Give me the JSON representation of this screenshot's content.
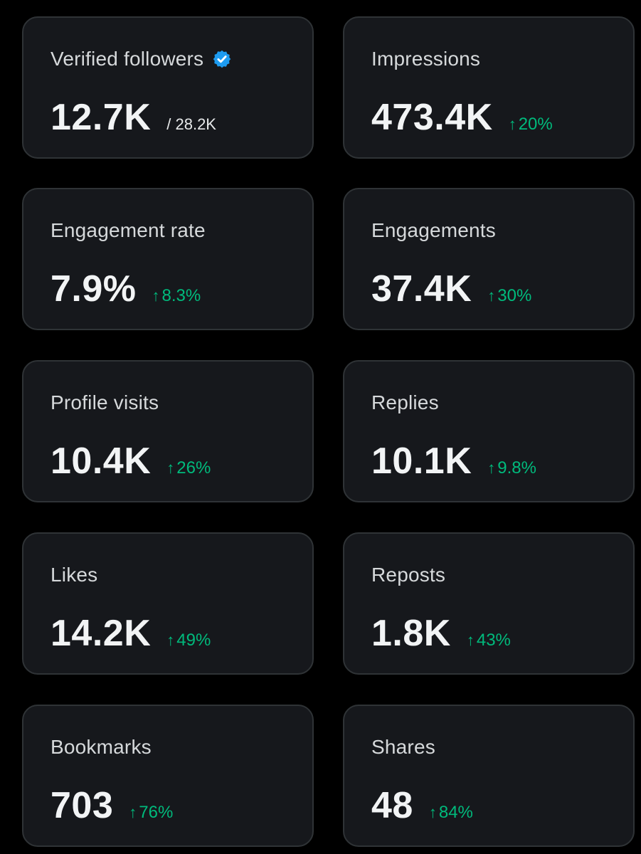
{
  "metrics": [
    {
      "label": "Verified followers",
      "value": "12.7K",
      "total": "/ 28.2K",
      "verified": true
    },
    {
      "label": "Impressions",
      "value": "473.4K",
      "change": "20%"
    },
    {
      "label": "Engagement rate",
      "value": "7.9%",
      "change": "8.3%"
    },
    {
      "label": "Engagements",
      "value": "37.4K",
      "change": "30%"
    },
    {
      "label": "Profile visits",
      "value": "10.4K",
      "change": "26%"
    },
    {
      "label": "Replies",
      "value": "10.1K",
      "change": "9.8%"
    },
    {
      "label": "Likes",
      "value": "14.2K",
      "change": "49%"
    },
    {
      "label": "Reposts",
      "value": "1.8K",
      "change": "43%"
    },
    {
      "label": "Bookmarks",
      "value": "703",
      "change": "76%"
    },
    {
      "label": "Shares",
      "value": "48",
      "change": "84%"
    }
  ],
  "icons": {
    "verified": "verified-badge-icon",
    "trend": "arrow-up-icon",
    "arrow_glyph": "↑"
  },
  "colors": {
    "card_background": "#16181c",
    "card_border": "#2f3336",
    "positive_change": "#00ba7c",
    "verified_badge": "#1d9bf0"
  }
}
